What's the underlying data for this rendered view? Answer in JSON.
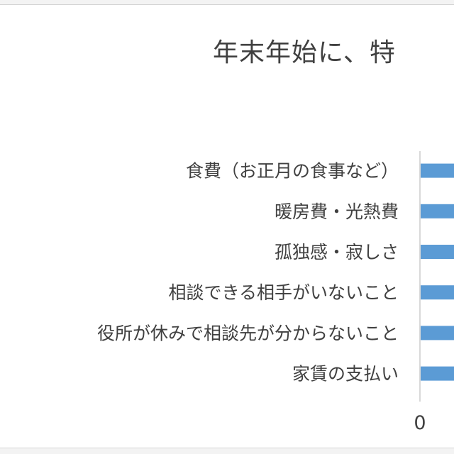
{
  "chart_data": {
    "type": "bar",
    "orientation": "horizontal",
    "title": "年末年始に、特",
    "categories": [
      "食費（お正月の食事など）",
      "暖房費・光熱費",
      "孤独感・寂しさ",
      "相談できる相手がいないこと",
      "役所が休みで相談先が分からないこと",
      "家賃の支払い"
    ],
    "x_ticks": [
      "0"
    ],
    "bar_color": "#5b9bd5",
    "axis_color": "#d9d9d9",
    "grid": false
  }
}
